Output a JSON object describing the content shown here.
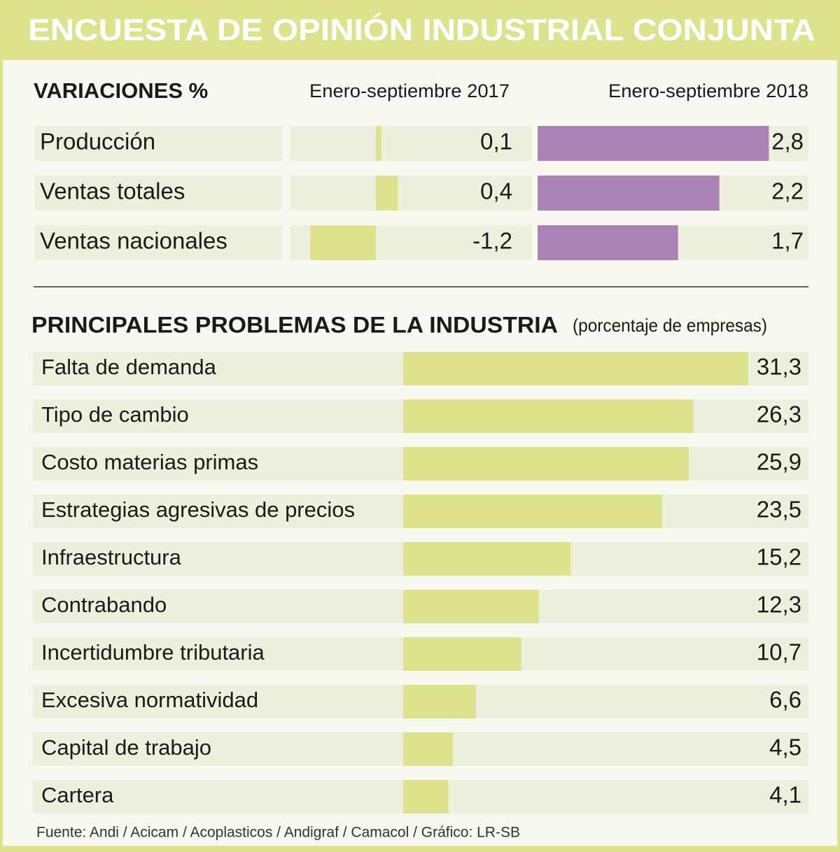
{
  "title": "ENCUESTA DE OPINIÓN INDUSTRIAL CONJUNTA",
  "chart_data": [
    {
      "type": "bar",
      "title": "VARIACIONES %",
      "categories": [
        "Producción",
        "Ventas totales",
        "Ventas nacionales"
      ],
      "series": [
        {
          "name": "Enero-septiembre 2017",
          "color": "#dde28c",
          "values": [
            0.1,
            0.4,
            -1.2
          ],
          "value_labels": [
            "0,1",
            "0,4",
            "-1,2"
          ]
        },
        {
          "name": "Enero-septiembre 2018",
          "color": "#ab83b6",
          "values": [
            2.8,
            2.2,
            1.7
          ],
          "value_labels": [
            "2,8",
            "2,2",
            "1,7"
          ]
        }
      ]
    },
    {
      "type": "bar",
      "title": "PRINCIPALES PROBLEMAS DE LA INDUSTRIA",
      "subtitle": "(porcentaje de empresas)",
      "categories": [
        "Falta de demanda",
        "Tipo de cambio",
        "Costo materias primas",
        "Estrategias agresivas de precios",
        "Infraestructura",
        "Contrabando",
        "Incertidumbre tributaria",
        "Excesiva normatividad",
        "Capital de trabajo",
        "Cartera"
      ],
      "color": "#dde28c",
      "values": [
        31.3,
        26.3,
        25.9,
        23.5,
        15.2,
        12.3,
        10.7,
        6.6,
        4.5,
        4.1
      ],
      "value_labels": [
        "31,3",
        "26,3",
        "25,9",
        "23,5",
        "15,2",
        "12,3",
        "10,7",
        "6,6",
        "4,5",
        "4,1"
      ]
    }
  ],
  "source": "Fuente: Andi / Acicam / Acoplasticos / Andigraf / Camacol / Gráfico: LR-SB"
}
